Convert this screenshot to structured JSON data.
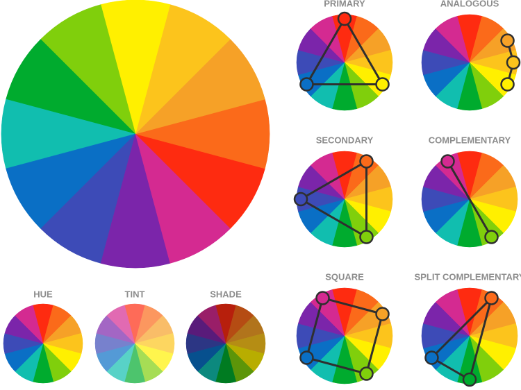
{
  "harmonies": [
    {
      "label": "PRIMARY"
    },
    {
      "label": "ANALOGOUS"
    },
    {
      "label": "SECONDARY"
    },
    {
      "label": "COMPLEMENTARY"
    },
    {
      "label": "SQUARE"
    },
    {
      "label": "SPLIT COMPLEMENTARY"
    }
  ],
  "variants": [
    {
      "label": "HUE"
    },
    {
      "label": "TINT"
    },
    {
      "label": "SHADE"
    }
  ]
}
